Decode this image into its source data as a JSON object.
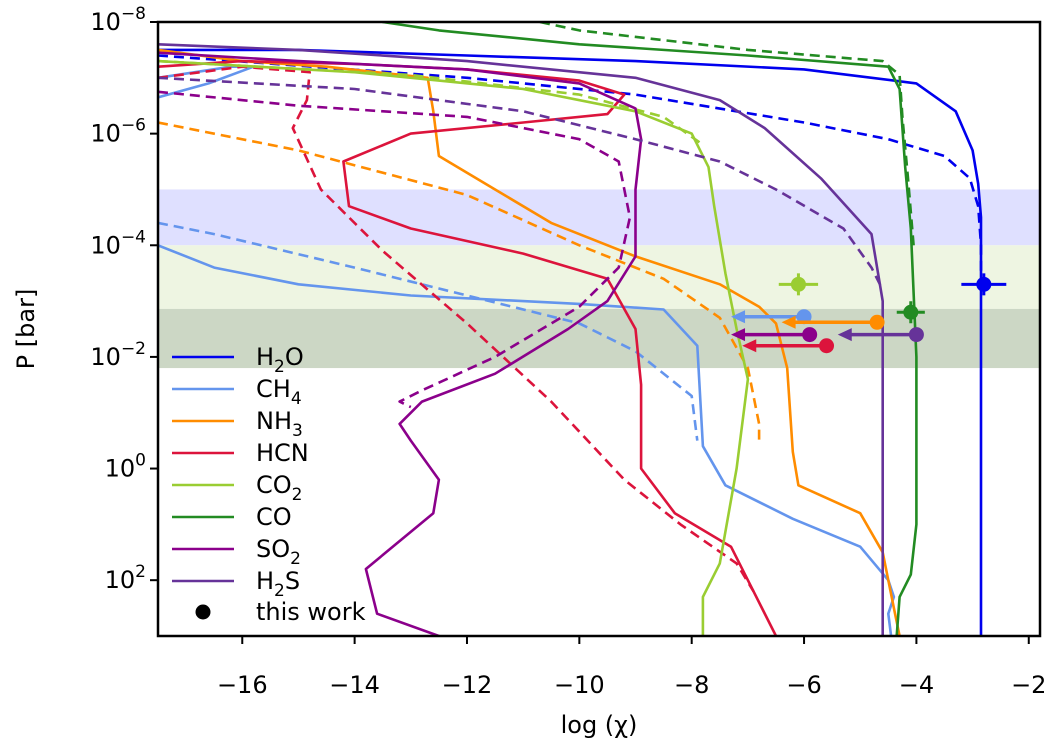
{
  "chart_data": {
    "type": "line",
    "xlabel": "log (χ)",
    "ylabel": "P [bar]",
    "xlim": [
      -17.5,
      -1.8
    ],
    "ylim_log10": [
      -8,
      3
    ],
    "y_axis_scale": "log",
    "y_axis_inverted": true,
    "grid": false,
    "legend_placement": "lower-left",
    "x_ticks": [
      -16,
      -14,
      -12,
      -10,
      -8,
      -6,
      -4,
      -2
    ],
    "x_tick_labels": [
      "−16",
      "−14",
      "−12",
      "−10",
      "−8",
      "−6",
      "−4",
      "−2"
    ],
    "y_ticks_log10": [
      -8,
      -6,
      -4,
      -2,
      0,
      2
    ],
    "y_tick_labels": [
      {
        "base": "10",
        "exp": "−8"
      },
      {
        "base": "10",
        "exp": "−6"
      },
      {
        "base": "10",
        "exp": "−4"
      },
      {
        "base": "10",
        "exp": "−2"
      },
      {
        "base": "10",
        "exp": "0"
      },
      {
        "base": "10",
        "exp": "2"
      }
    ],
    "bands": [
      {
        "p_log10": [
          -5.0,
          -4.0
        ],
        "color": "#dfe0ff"
      },
      {
        "p_log10": [
          -4.0,
          -2.86
        ],
        "color": "#eef5e2"
      },
      {
        "p_log10": [
          -2.86,
          -1.8
        ],
        "color": "#ccd7c5"
      }
    ],
    "series": [
      {
        "name": "H2O",
        "label": "H",
        "sub": "2",
        "suffix": "O",
        "color": "#0000ee",
        "solid": [
          [
            -17.5,
            -7.5
          ],
          [
            -15,
            -7.5
          ],
          [
            -12,
            -7.4
          ],
          [
            -9,
            -7.3
          ],
          [
            -6,
            -7.15
          ],
          [
            -4,
            -6.9
          ],
          [
            -3.3,
            -6.4
          ],
          [
            -3.0,
            -5.7
          ],
          [
            -2.9,
            -5.1
          ],
          [
            -2.85,
            -4.5
          ],
          [
            -2.85,
            3
          ]
        ],
        "dashed": [
          [
            -17.5,
            -7.4
          ],
          [
            -12,
            -7.0
          ],
          [
            -9,
            -6.7
          ],
          [
            -6,
            -6.2
          ],
          [
            -4.5,
            -5.9
          ],
          [
            -3.5,
            -5.6
          ],
          [
            -3.05,
            -5.2
          ],
          [
            -2.9,
            -4.7
          ],
          [
            -2.85,
            -4.0
          ],
          [
            -2.85,
            -3.5
          ]
        ]
      },
      {
        "name": "CH4",
        "label": "CH",
        "sub": "4",
        "color": "#6495ed",
        "solid": [
          [
            -17.5,
            -6.65
          ],
          [
            -16.6,
            -6.9
          ],
          [
            -15.8,
            -7.2
          ],
          [
            -16.2,
            -7.2
          ],
          [
            -17.5,
            -7.0
          ]
        ],
        "solid2": [
          [
            -17.5,
            -4.0
          ],
          [
            -16.5,
            -3.6
          ],
          [
            -15,
            -3.3
          ],
          [
            -13,
            -3.1
          ],
          [
            -10,
            -2.95
          ],
          [
            -8.5,
            -2.85
          ],
          [
            -7.9,
            -2.2
          ],
          [
            -7.8,
            -0.4
          ],
          [
            -7.4,
            0.3
          ],
          [
            -6.2,
            0.9
          ],
          [
            -5.0,
            1.4
          ],
          [
            -4.5,
            2.0
          ],
          [
            -4.4,
            2.3
          ],
          [
            -4.5,
            2.6
          ],
          [
            -4.45,
            3
          ]
        ],
        "dashed": [
          [
            -17.5,
            -4.4
          ],
          [
            -16.5,
            -4.2
          ],
          [
            -14,
            -3.6
          ],
          [
            -12,
            -3.1
          ],
          [
            -10,
            -2.6
          ],
          [
            -9,
            -2.1
          ],
          [
            -8,
            -1.3
          ],
          [
            -7.9,
            -0.5
          ]
        ]
      },
      {
        "name": "NH3",
        "label": "NH",
        "sub": "3",
        "color": "#ff8c00",
        "solid": [
          [
            -17.5,
            -7.5
          ],
          [
            -16,
            -7.3
          ],
          [
            -14.5,
            -7.2
          ],
          [
            -12.7,
            -7.0
          ],
          [
            -12.6,
            -6.4
          ],
          [
            -12.5,
            -5.6
          ],
          [
            -11.5,
            -5.0
          ],
          [
            -10.5,
            -4.4
          ],
          [
            -9,
            -3.8
          ],
          [
            -7.5,
            -3.3
          ],
          [
            -6.8,
            -2.9
          ],
          [
            -6.5,
            -2.6
          ],
          [
            -6.3,
            -1.8
          ],
          [
            -6.2,
            -0.3
          ],
          [
            -6.1,
            0.3
          ],
          [
            -5,
            0.8
          ],
          [
            -4.6,
            1.5
          ],
          [
            -4.4,
            2.5
          ],
          [
            -4.3,
            3
          ]
        ],
        "dashed": [
          [
            -17.5,
            -6.2
          ],
          [
            -15,
            -5.7
          ],
          [
            -12,
            -4.9
          ],
          [
            -10,
            -4.0
          ],
          [
            -8.5,
            -3.4
          ],
          [
            -7.5,
            -2.7
          ],
          [
            -7.0,
            -1.8
          ],
          [
            -6.8,
            -0.8
          ],
          [
            -6.8,
            -0.5
          ]
        ]
      },
      {
        "name": "HCN",
        "label": "HCN",
        "color": "#dc143c",
        "solid": [
          [
            -17.5,
            -7.2
          ],
          [
            -16,
            -7.3
          ],
          [
            -14,
            -7.25
          ],
          [
            -12,
            -7.15
          ],
          [
            -10,
            -6.95
          ],
          [
            -9.2,
            -6.7
          ],
          [
            -9.5,
            -6.35
          ],
          [
            -11,
            -6.2
          ],
          [
            -13,
            -6.0
          ],
          [
            -14.2,
            -5.5
          ],
          [
            -14.1,
            -4.7
          ],
          [
            -13,
            -4.3
          ],
          [
            -11,
            -3.85
          ],
          [
            -9.5,
            -3.4
          ],
          [
            -9.0,
            -2.5
          ],
          [
            -8.9,
            -1.5
          ],
          [
            -8.9,
            0
          ],
          [
            -8.3,
            0.8
          ],
          [
            -7.3,
            1.4
          ],
          [
            -6.9,
            2.2
          ],
          [
            -6.5,
            3
          ]
        ],
        "dashed": [
          [
            -17.5,
            -7.0
          ],
          [
            -16,
            -7.2
          ],
          [
            -14.8,
            -7.1
          ],
          [
            -14.85,
            -6.6
          ],
          [
            -15.1,
            -6.1
          ],
          [
            -14.6,
            -5.0
          ],
          [
            -13.5,
            -3.9
          ],
          [
            -12,
            -2.6
          ],
          [
            -10.5,
            -1.2
          ],
          [
            -9.2,
            0.2
          ],
          [
            -8.2,
            1.0
          ],
          [
            -7.2,
            1.7
          ],
          [
            -6.9,
            2.2
          ]
        ]
      },
      {
        "name": "CO2",
        "label": "CO",
        "sub": "2",
        "color": "#9acd32",
        "solid": [
          [
            -17.5,
            -7.3
          ],
          [
            -14,
            -7.1
          ],
          [
            -11,
            -6.8
          ],
          [
            -9,
            -6.4
          ],
          [
            -8,
            -6.0
          ],
          [
            -7.7,
            -5.4
          ],
          [
            -7.6,
            -4.7
          ],
          [
            -7.4,
            -3.5
          ],
          [
            -7.2,
            -2.5
          ],
          [
            -7.0,
            -1.6
          ],
          [
            -7.2,
            0.0
          ],
          [
            -7.5,
            1.7
          ],
          [
            -7.8,
            2.3
          ],
          [
            -7.8,
            3
          ]
        ],
        "dashed": [
          [
            -17.5,
            -7.3
          ],
          [
            -13,
            -7.05
          ],
          [
            -10,
            -6.7
          ],
          [
            -8.5,
            -6.3
          ],
          [
            -7.8,
            -5.8
          ]
        ]
      },
      {
        "name": "CO",
        "label": "CO",
        "color": "#228b22",
        "solid": [
          [
            -13.5,
            -8.0
          ],
          [
            -12.5,
            -7.85
          ],
          [
            -10,
            -7.6
          ],
          [
            -7,
            -7.4
          ],
          [
            -4.5,
            -7.2
          ],
          [
            -4.3,
            -6.8
          ],
          [
            -4.2,
            -5.4
          ],
          [
            -4.1,
            -4.3
          ],
          [
            -4.0,
            -2.0
          ],
          [
            -4.0,
            1.0
          ],
          [
            -4.1,
            1.9
          ],
          [
            -4.3,
            2.3
          ],
          [
            -4.35,
            3
          ]
        ],
        "dashed": [
          [
            -10.7,
            -8.0
          ],
          [
            -10,
            -7.85
          ],
          [
            -7,
            -7.5
          ],
          [
            -4.6,
            -7.3
          ],
          [
            -4.3,
            -7.05
          ],
          [
            -4.25,
            -6.3
          ],
          [
            -4.15,
            -5.2
          ],
          [
            -4.1,
            -4.6
          ],
          [
            -4.05,
            -4.0
          ]
        ]
      },
      {
        "name": "SO2",
        "label": "SO",
        "sub": "2",
        "color": "#8b008b",
        "solid": [
          [
            -17.5,
            -7.45
          ],
          [
            -15,
            -7.3
          ],
          [
            -12,
            -7.15
          ],
          [
            -10,
            -6.9
          ],
          [
            -9,
            -6.45
          ],
          [
            -8.9,
            -5.9
          ],
          [
            -9.0,
            -5.0
          ],
          [
            -9.0,
            -3.8
          ],
          [
            -9.5,
            -3.0
          ],
          [
            -10.2,
            -2.5
          ],
          [
            -11.5,
            -1.7
          ],
          [
            -12.8,
            -1.2
          ],
          [
            -13.2,
            -0.8
          ],
          [
            -13.0,
            -0.5
          ],
          [
            -12.5,
            0.2
          ],
          [
            -12.6,
            0.8
          ],
          [
            -13.8,
            1.8
          ],
          [
            -13.6,
            2.6
          ],
          [
            -12.5,
            3
          ]
        ],
        "dashed": [
          [
            -17.5,
            -6.75
          ],
          [
            -15,
            -6.5
          ],
          [
            -12,
            -6.3
          ],
          [
            -10,
            -5.9
          ],
          [
            -9.3,
            -5.5
          ],
          [
            -9.1,
            -4.5
          ],
          [
            -9.3,
            -3.6
          ],
          [
            -10,
            -2.9
          ],
          [
            -11.5,
            -2.0
          ],
          [
            -12.8,
            -1.4
          ],
          [
            -13.2,
            -1.2
          ],
          [
            -13.0,
            -1.1
          ]
        ]
      },
      {
        "name": "H2S",
        "label": "H",
        "sub": "2",
        "suffix": "S",
        "color": "#663399",
        "solid": [
          [
            -17.5,
            -7.6
          ],
          [
            -15,
            -7.5
          ],
          [
            -12,
            -7.3
          ],
          [
            -9,
            -7.0
          ],
          [
            -7.5,
            -6.6
          ],
          [
            -6.7,
            -6.1
          ],
          [
            -5.7,
            -5.2
          ],
          [
            -4.8,
            -4.2
          ],
          [
            -4.6,
            -3.0
          ],
          [
            -4.6,
            3
          ]
        ],
        "dashed": [
          [
            -17.5,
            -7.0
          ],
          [
            -14,
            -6.8
          ],
          [
            -11,
            -6.4
          ],
          [
            -9,
            -5.9
          ],
          [
            -7.5,
            -5.5
          ],
          [
            -6.5,
            -5.0
          ],
          [
            -5.3,
            -4.3
          ],
          [
            -4.8,
            -3.6
          ],
          [
            -4.6,
            -3.2
          ]
        ]
      }
    ],
    "this_work": {
      "label": "this work",
      "points": [
        {
          "species": "H2O",
          "x": -2.8,
          "y_log10": -3.3,
          "xerr": 0.4,
          "color": "#0000ee",
          "type": "point"
        },
        {
          "species": "CO2",
          "x": -6.1,
          "y_log10": -3.3,
          "xerr": 0.35,
          "color": "#9acd32",
          "type": "point"
        },
        {
          "species": "CO",
          "x": -4.1,
          "y_log10": -2.8,
          "xerr": 0.25,
          "color": "#228b22",
          "type": "point"
        },
        {
          "species": "CH4",
          "x": -6.0,
          "y_log10": -2.72,
          "arrow_to": -7.3,
          "color": "#6495ed",
          "type": "upper_limit"
        },
        {
          "species": "NH3",
          "x": -4.7,
          "y_log10": -2.62,
          "arrow_to": -6.4,
          "color": "#ff8c00",
          "type": "upper_limit"
        },
        {
          "species": "H2S",
          "x": -4.0,
          "y_log10": -2.4,
          "arrow_to": -5.4,
          "color": "#663399",
          "type": "upper_limit"
        },
        {
          "species": "SO2",
          "x": -5.9,
          "y_log10": -2.4,
          "arrow_to": -7.3,
          "color": "#8b008b",
          "type": "upper_limit"
        },
        {
          "species": "HCN",
          "x": -5.6,
          "y_log10": -2.2,
          "arrow_to": -7.1,
          "color": "#dc143c",
          "type": "upper_limit"
        }
      ]
    }
  }
}
